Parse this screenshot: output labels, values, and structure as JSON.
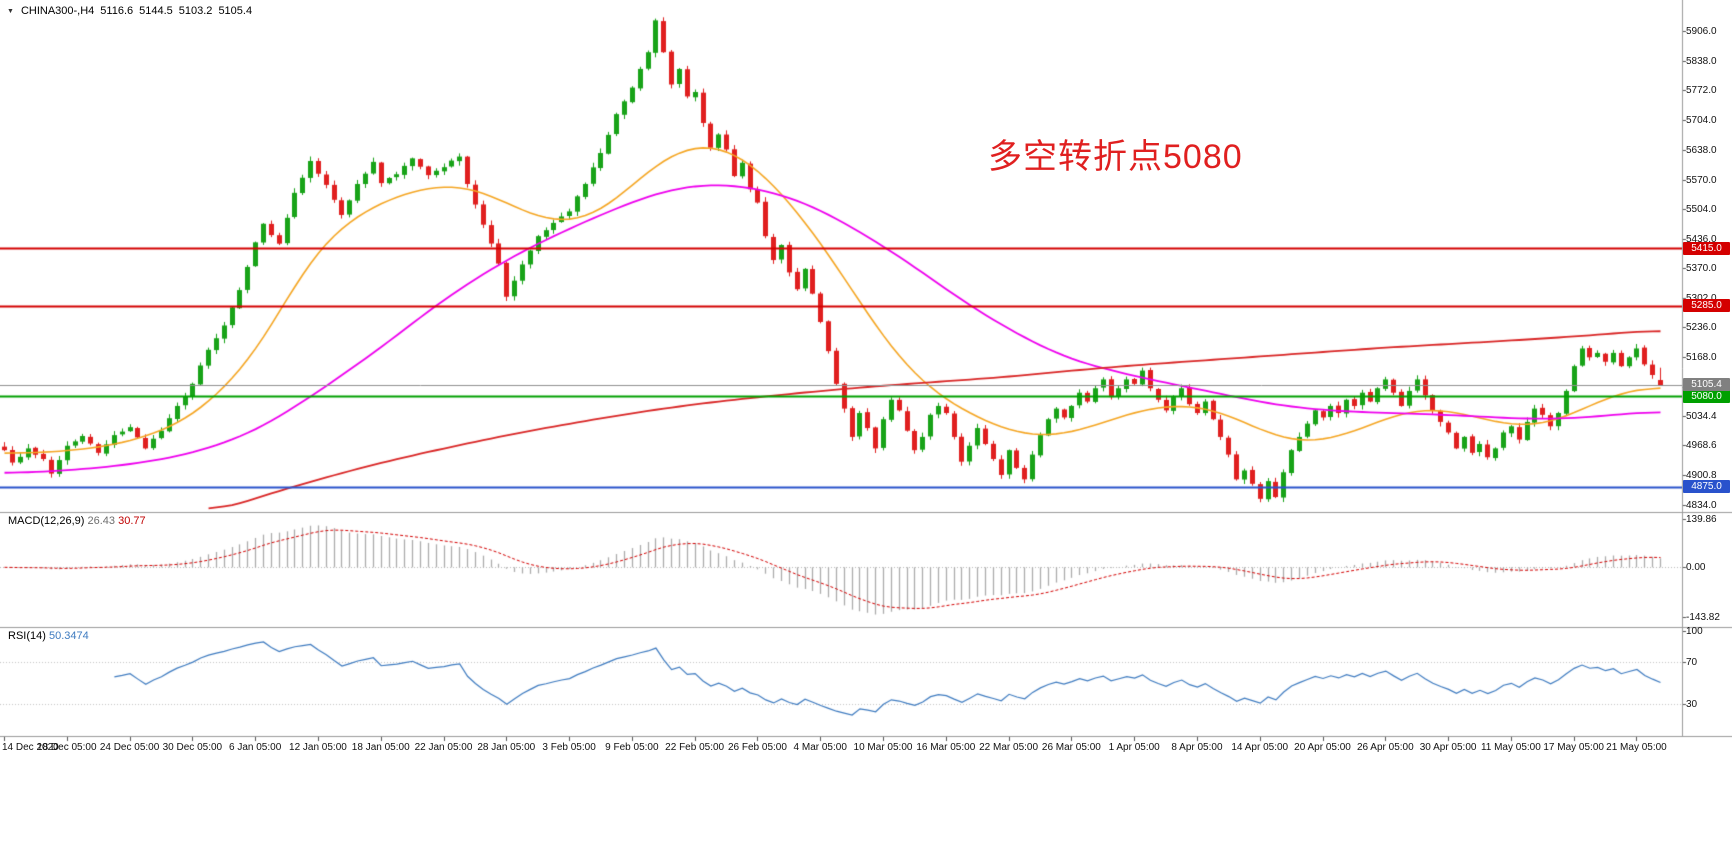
{
  "header": {
    "dropdown_icon": "▼",
    "symbol": "CHINA300-,H4",
    "open": "5116.6",
    "high": "5144.5",
    "low": "5103.2",
    "close": "5105.4"
  },
  "annotation": {
    "text": "多空转折点5080",
    "color": "#e02020"
  },
  "levels": [
    {
      "label": "5415.0",
      "value": 5415.0,
      "color": "#d40000"
    },
    {
      "label": "5285.0",
      "value": 5285.0,
      "color": "#d40000"
    },
    {
      "label": "5080.0",
      "value": 5080.0,
      "color": "#00a000"
    },
    {
      "label": "4875.0",
      "value": 4875.0,
      "color": "#2952cc"
    }
  ],
  "current_price": {
    "label": "5105.4",
    "value": 5105.4,
    "color": "#808080"
  },
  "main_axis": {
    "top_value": 5906.0,
    "bottom_value": 4834.0,
    "ticks": [
      "5906.0",
      "5838.0",
      "5772.0",
      "5704.0",
      "5638.0",
      "5570.0",
      "5504.0",
      "5436.0",
      "5370.0",
      "5302.0",
      "5236.0",
      "5168.0",
      "5102.0",
      "5034.4",
      "4968.6",
      "4900.8",
      "4834.0"
    ]
  },
  "macd_panel": {
    "label": "MACD(12,26,9)",
    "value1": "26.43",
    "value2": "30.77",
    "ticks": [
      "139.86",
      "0.00",
      "-143.82"
    ]
  },
  "rsi_panel": {
    "label": "RSI(14)",
    "value": "50.3474",
    "ticks": [
      "100",
      "70",
      "30"
    ]
  },
  "time_axis": {
    "labels": [
      "14 Dec 2020",
      "18 Dec 05:00",
      "24 Dec 05:00",
      "30 Dec 05:00",
      "6 Jan 05:00",
      "12 Jan 05:00",
      "18 Jan 05:00",
      "22 Jan 05:00",
      "28 Jan 05:00",
      "3 Feb 05:00",
      "9 Feb 05:00",
      "22 Feb 05:00",
      "26 Feb 05:00",
      "4 Mar 05:00",
      "10 Mar 05:00",
      "16 Mar 05:00",
      "22 Mar 05:00",
      "26 Mar 05:00",
      "1 Apr 05:00",
      "8 Apr 05:00",
      "14 Apr 05:00",
      "20 Apr 05:00",
      "26 Apr 05:00",
      "30 Apr 05:00",
      "11 May 05:00",
      "17 May 05:00",
      "21 May 05:00"
    ]
  },
  "colors": {
    "bull": "#18a318",
    "bear": "#e01f1f",
    "ma_fast": "#f5a623",
    "ma_mid": "#ee00ee",
    "ma_slow": "#d92626",
    "macd_hist": "#ababab",
    "macd_signal": "#d40000",
    "rsi_line": "#3e7bc0",
    "axis_line": "#9a9a9a",
    "current_line": "#909090"
  },
  "chart_data": {
    "type": "candlestick",
    "symbol": "CHINA300-",
    "timeframe": "H4",
    "bars": 212,
    "price_range": [
      4834.0,
      5906.0
    ],
    "horizontal_levels": [
      5415.0,
      5285.0,
      5080.0,
      4875.0
    ],
    "current_price": 5105.4,
    "last_bar": {
      "open": 5116.6,
      "high": 5144.5,
      "low": 5103.2,
      "close": 5105.4
    },
    "peak_high": 5934,
    "time_start": "14 Dec 2020",
    "time_end": "21 May 05:00",
    "price_path_anchors": [
      [
        0,
        4958
      ],
      [
        1,
        4930
      ],
      [
        3,
        4962
      ],
      [
        5,
        4938
      ],
      [
        6,
        4905
      ],
      [
        8,
        4968
      ],
      [
        10,
        4990
      ],
      [
        12,
        4952
      ],
      [
        14,
        4992
      ],
      [
        16,
        5010
      ],
      [
        18,
        4962
      ],
      [
        20,
        5002
      ],
      [
        22,
        5058
      ],
      [
        24,
        5108
      ],
      [
        26,
        5185
      ],
      [
        28,
        5240
      ],
      [
        30,
        5320
      ],
      [
        32,
        5428
      ],
      [
        33,
        5470
      ],
      [
        35,
        5425
      ],
      [
        37,
        5540
      ],
      [
        39,
        5612
      ],
      [
        41,
        5558
      ],
      [
        43,
        5490
      ],
      [
        45,
        5560
      ],
      [
        47,
        5610
      ],
      [
        48,
        5562
      ],
      [
        50,
        5582
      ],
      [
        52,
        5618
      ],
      [
        54,
        5580
      ],
      [
        56,
        5598
      ],
      [
        58,
        5622
      ],
      [
        59,
        5560
      ],
      [
        61,
        5468
      ],
      [
        63,
        5380
      ],
      [
        64,
        5305
      ],
      [
        66,
        5378
      ],
      [
        68,
        5442
      ],
      [
        70,
        5472
      ],
      [
        72,
        5498
      ],
      [
        74,
        5560
      ],
      [
        76,
        5630
      ],
      [
        78,
        5718
      ],
      [
        80,
        5778
      ],
      [
        82,
        5858
      ],
      [
        83,
        5930
      ],
      [
        84,
        5858
      ],
      [
        85,
        5785
      ],
      [
        86,
        5820
      ],
      [
        87,
        5758
      ],
      [
        88,
        5768
      ],
      [
        89,
        5698
      ],
      [
        90,
        5642
      ],
      [
        91,
        5672
      ],
      [
        92,
        5638
      ],
      [
        93,
        5578
      ],
      [
        94,
        5608
      ],
      [
        95,
        5548
      ],
      [
        96,
        5518
      ],
      [
        97,
        5442
      ],
      [
        98,
        5388
      ],
      [
        99,
        5422
      ],
      [
        100,
        5360
      ],
      [
        101,
        5322
      ],
      [
        102,
        5368
      ],
      [
        103,
        5312
      ],
      [
        104,
        5248
      ],
      [
        105,
        5182
      ],
      [
        106,
        5108
      ],
      [
        107,
        5052
      ],
      [
        108,
        4988
      ],
      [
        109,
        5042
      ],
      [
        110,
        5008
      ],
      [
        111,
        4962
      ],
      [
        112,
        5028
      ],
      [
        113,
        5072
      ],
      [
        114,
        5048
      ],
      [
        115,
        5002
      ],
      [
        116,
        4958
      ],
      [
        117,
        4988
      ],
      [
        118,
        5038
      ],
      [
        119,
        5058
      ],
      [
        120,
        5042
      ],
      [
        121,
        4988
      ],
      [
        122,
        4932
      ],
      [
        123,
        4968
      ],
      [
        124,
        5008
      ],
      [
        125,
        4972
      ],
      [
        126,
        4938
      ],
      [
        127,
        4902
      ],
      [
        128,
        4958
      ],
      [
        129,
        4918
      ],
      [
        130,
        4892
      ],
      [
        131,
        4948
      ],
      [
        132,
        4992
      ],
      [
        133,
        5028
      ],
      [
        134,
        5052
      ],
      [
        135,
        5032
      ],
      [
        136,
        5058
      ],
      [
        137,
        5088
      ],
      [
        138,
        5068
      ],
      [
        139,
        5098
      ],
      [
        140,
        5118
      ],
      [
        141,
        5078
      ],
      [
        142,
        5098
      ],
      [
        143,
        5118
      ],
      [
        144,
        5108
      ],
      [
        145,
        5138
      ],
      [
        146,
        5098
      ],
      [
        147,
        5072
      ],
      [
        148,
        5048
      ],
      [
        149,
        5078
      ],
      [
        150,
        5098
      ],
      [
        151,
        5062
      ],
      [
        152,
        5042
      ],
      [
        153,
        5068
      ],
      [
        154,
        5028
      ],
      [
        155,
        4988
      ],
      [
        156,
        4948
      ],
      [
        157,
        4892
      ],
      [
        158,
        4912
      ],
      [
        159,
        4882
      ],
      [
        160,
        4848
      ],
      [
        161,
        4888
      ],
      [
        162,
        4852
      ],
      [
        163,
        4908
      ],
      [
        164,
        4958
      ],
      [
        165,
        4988
      ],
      [
        166,
        5018
      ],
      [
        167,
        5048
      ],
      [
        168,
        5032
      ],
      [
        169,
        5058
      ],
      [
        170,
        5042
      ],
      [
        171,
        5072
      ],
      [
        172,
        5058
      ],
      [
        173,
        5088
      ],
      [
        174,
        5068
      ],
      [
        175,
        5098
      ],
      [
        176,
        5118
      ],
      [
        177,
        5088
      ],
      [
        178,
        5058
      ],
      [
        179,
        5092
      ],
      [
        180,
        5118
      ],
      [
        181,
        5082
      ],
      [
        182,
        5048
      ],
      [
        183,
        5022
      ],
      [
        184,
        4998
      ],
      [
        185,
        4962
      ],
      [
        186,
        4988
      ],
      [
        187,
        4952
      ],
      [
        188,
        4972
      ],
      [
        189,
        4942
      ],
      [
        190,
        4962
      ],
      [
        191,
        4998
      ],
      [
        192,
        5012
      ],
      [
        193,
        4982
      ],
      [
        194,
        5022
      ],
      [
        195,
        5052
      ],
      [
        196,
        5038
      ],
      [
        197,
        5012
      ],
      [
        198,
        5042
      ],
      [
        199,
        5092
      ],
      [
        200,
        5148
      ],
      [
        201,
        5188
      ],
      [
        202,
        5168
      ],
      [
        203,
        5178
      ],
      [
        204,
        5158
      ],
      [
        205,
        5178
      ],
      [
        206,
        5148
      ],
      [
        207,
        5168
      ],
      [
        208,
        5188
      ],
      [
        209,
        5152
      ],
      [
        210,
        5128
      ],
      [
        211,
        5105.4
      ]
    ],
    "moving_averages": [
      {
        "name": "fast-ma",
        "color": "#f5a623",
        "anchors": [
          [
            0,
            4950
          ],
          [
            8,
            4955
          ],
          [
            16,
            4975
          ],
          [
            24,
            5030
          ],
          [
            32,
            5170
          ],
          [
            36,
            5305
          ],
          [
            40,
            5420
          ],
          [
            44,
            5480
          ],
          [
            48,
            5520
          ],
          [
            52,
            5545
          ],
          [
            56,
            5560
          ],
          [
            60,
            5552
          ],
          [
            64,
            5518
          ],
          [
            68,
            5480
          ],
          [
            72,
            5470
          ],
          [
            76,
            5492
          ],
          [
            80,
            5558
          ],
          [
            84,
            5622
          ],
          [
            88,
            5650
          ],
          [
            90,
            5656
          ],
          [
            92,
            5640
          ],
          [
            96,
            5600
          ],
          [
            100,
            5520
          ],
          [
            104,
            5430
          ],
          [
            108,
            5320
          ],
          [
            112,
            5210
          ],
          [
            116,
            5122
          ],
          [
            120,
            5070
          ],
          [
            124,
            5030
          ],
          [
            128,
            5000
          ],
          [
            132,
            4986
          ],
          [
            136,
            4996
          ],
          [
            140,
            5020
          ],
          [
            144,
            5046
          ],
          [
            148,
            5060
          ],
          [
            152,
            5060
          ],
          [
            156,
            5040
          ],
          [
            160,
            5002
          ],
          [
            164,
            4976
          ],
          [
            168,
            4976
          ],
          [
            172,
            5000
          ],
          [
            176,
            5030
          ],
          [
            180,
            5054
          ],
          [
            184,
            5050
          ],
          [
            188,
            5030
          ],
          [
            192,
            5012
          ],
          [
            196,
            5012
          ],
          [
            200,
            5040
          ],
          [
            204,
            5078
          ],
          [
            208,
            5098
          ],
          [
            211,
            5104
          ]
        ]
      },
      {
        "name": "mid-ma",
        "color": "#ee00ee",
        "anchors": [
          [
            0,
            4905
          ],
          [
            8,
            4912
          ],
          [
            16,
            4925
          ],
          [
            24,
            4950
          ],
          [
            32,
            5000
          ],
          [
            40,
            5090
          ],
          [
            48,
            5190
          ],
          [
            56,
            5300
          ],
          [
            64,
            5390
          ],
          [
            72,
            5460
          ],
          [
            80,
            5520
          ],
          [
            84,
            5545
          ],
          [
            88,
            5558
          ],
          [
            92,
            5560
          ],
          [
            96,
            5550
          ],
          [
            100,
            5532
          ],
          [
            104,
            5502
          ],
          [
            108,
            5462
          ],
          [
            112,
            5420
          ],
          [
            116,
            5372
          ],
          [
            120,
            5322
          ],
          [
            124,
            5272
          ],
          [
            128,
            5232
          ],
          [
            132,
            5192
          ],
          [
            136,
            5162
          ],
          [
            140,
            5142
          ],
          [
            144,
            5126
          ],
          [
            148,
            5110
          ],
          [
            152,
            5096
          ],
          [
            156,
            5082
          ],
          [
            160,
            5066
          ],
          [
            164,
            5056
          ],
          [
            168,
            5048
          ],
          [
            172,
            5045
          ],
          [
            176,
            5042
          ],
          [
            180,
            5040
          ],
          [
            184,
            5038
          ],
          [
            188,
            5034
          ],
          [
            192,
            5030
          ],
          [
            196,
            5028
          ],
          [
            200,
            5030
          ],
          [
            204,
            5036
          ],
          [
            208,
            5042
          ],
          [
            211,
            5048
          ]
        ]
      },
      {
        "name": "slow-ma",
        "color": "#d92626",
        "anchors": [
          [
            26,
            4812
          ],
          [
            32,
            4850
          ],
          [
            40,
            4892
          ],
          [
            48,
            4930
          ],
          [
            56,
            4962
          ],
          [
            64,
            4992
          ],
          [
            72,
            5018
          ],
          [
            80,
            5042
          ],
          [
            88,
            5062
          ],
          [
            96,
            5078
          ],
          [
            104,
            5092
          ],
          [
            112,
            5104
          ],
          [
            120,
            5114
          ],
          [
            128,
            5124
          ],
          [
            136,
            5138
          ],
          [
            144,
            5150
          ],
          [
            152,
            5160
          ],
          [
            160,
            5170
          ],
          [
            168,
            5180
          ],
          [
            176,
            5190
          ],
          [
            184,
            5198
          ],
          [
            192,
            5206
          ],
          [
            200,
            5215
          ],
          [
            208,
            5226
          ],
          [
            211,
            5230
          ]
        ]
      }
    ],
    "macd": {
      "params": [
        12,
        26,
        9
      ],
      "current_main": 26.43,
      "current_signal": 30.77,
      "range": [
        -143.82,
        139.86
      ]
    },
    "rsi": {
      "period": 14,
      "current": 50.3474,
      "range": [
        0,
        100
      ],
      "levels": [
        70,
        30
      ]
    }
  }
}
